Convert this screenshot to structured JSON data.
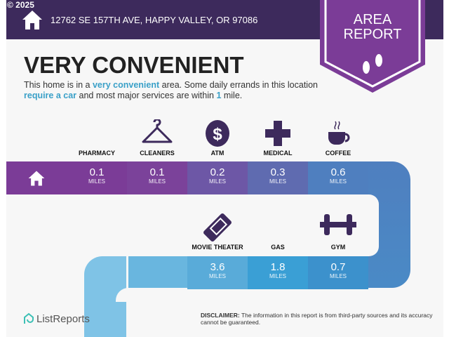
{
  "copyright": "© 2025",
  "header": {
    "address": "12762 SE 157TH AVE, HAPPY VALLEY, OR 97086",
    "badge_line1": "AREA",
    "badge_line2": "REPORT"
  },
  "headline": "VERY CONVENIENT",
  "description": {
    "p1": "This home is in a ",
    "h1": "very convenient",
    "p2": " area. Some daily errands in this location ",
    "h2": "require a car",
    "p3": " and most major services are within ",
    "h3": "1",
    "p4": " mile."
  },
  "unit": "MILES",
  "top_row": [
    {
      "label": "PHARMACY",
      "value": "0.1",
      "icon": "pharmacy-icon"
    },
    {
      "label": "CLEANERS",
      "value": "0.1",
      "icon": "hanger-icon"
    },
    {
      "label": "ATM",
      "value": "0.2",
      "icon": "dollar-icon"
    },
    {
      "label": "MEDICAL",
      "value": "0.3",
      "icon": "medical-cross-icon"
    },
    {
      "label": "COFFEE",
      "value": "0.6",
      "icon": "coffee-icon"
    }
  ],
  "bottom_row": [
    {
      "label": "MOVIE THEATER",
      "value": "3.6",
      "icon": "ticket-icon"
    },
    {
      "label": "GAS",
      "value": "1.8",
      "icon": "gas-icon"
    },
    {
      "label": "GYM",
      "value": "0.7",
      "icon": "dumbbell-icon"
    }
  ],
  "colors": {
    "header": "#3d2a5c",
    "badge": "#7b3c97",
    "accent": "#3aa0c8"
  },
  "footer": {
    "logo": "ListReports",
    "disclaimer_bold": "DISCLAIMER:",
    "disclaimer": " The information in this report is from third-party sources and its accuracy cannot be guaranteed."
  }
}
